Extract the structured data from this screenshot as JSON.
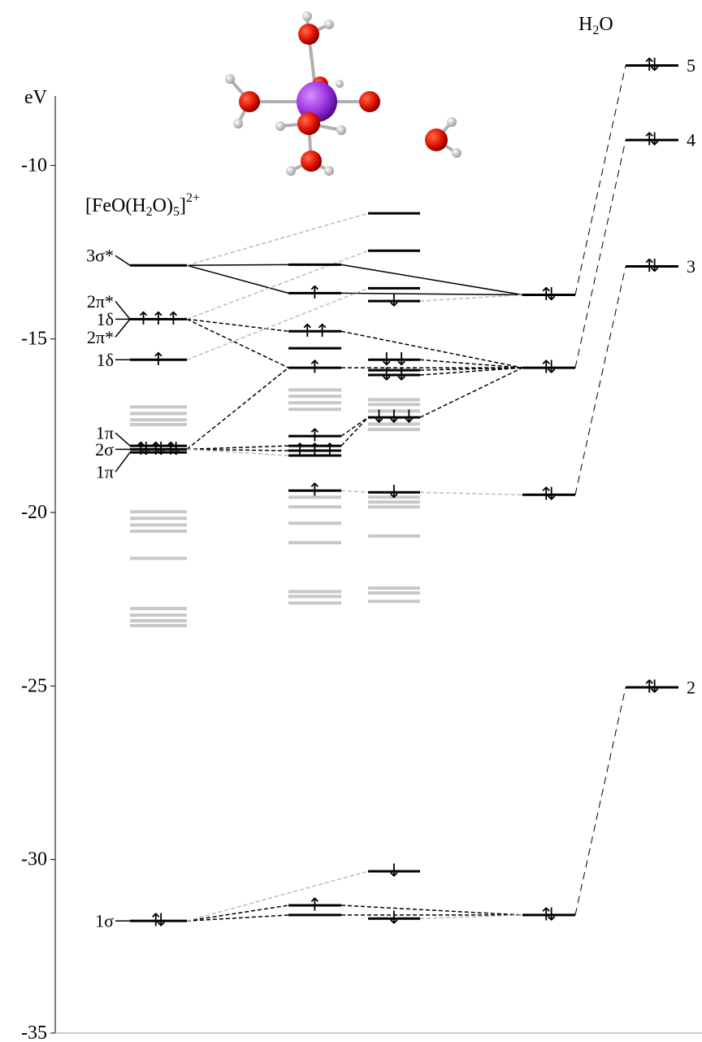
{
  "chart_data": {
    "type": "energy-levels",
    "y_label": "eV",
    "ylim": [
      -35,
      -8
    ],
    "yticks": [
      -35,
      -30,
      -25,
      -20,
      -15,
      -10
    ],
    "complex_label": [
      "[FeO(H",
      "2",
      "O)",
      "5",
      "]",
      "2+"
    ],
    "water_label": [
      "H",
      "2",
      "O"
    ],
    "main_color": "#000000",
    "other_color": "#c8c8c8",
    "columns": [
      {
        "values": [
          -12.88,
          -14.43,
          -15.6,
          -18.08,
          -18.18,
          -18.27,
          -31.77
        ],
        "electrons": [
          null,
          "↑↑↑",
          "↑",
          null,
          "⇅⇅⇅",
          null,
          "⇅"
        ],
        "labels": [
          [
            "3σ*"
          ],
          [
            "2π*",
            "1δ",
            "2π*"
          ],
          [
            "1δ"
          ],
          [
            "1π"
          ],
          [
            "2σ"
          ],
          [
            "1π"
          ],
          [
            "1σ"
          ]
        ],
        "other_values": [
          -16.96,
          -17.15,
          -17.33,
          -17.47,
          -19.98,
          -20.17,
          -20.36,
          -20.54,
          -21.32,
          -22.77,
          -22.96,
          -23.12,
          -23.26
        ]
      },
      {
        "values": [
          -12.86,
          -13.68,
          -14.78,
          -15.27,
          -15.83,
          -17.8,
          -18.08,
          -18.22,
          -18.36,
          -19.37,
          -31.32,
          -31.6
        ],
        "electrons": [
          null,
          "↑",
          "↑↑",
          null,
          "↑",
          "↑",
          null,
          "↑↑↑",
          null,
          "↑",
          "↑",
          null
        ],
        "other_values": [
          -16.47,
          -16.65,
          -16.84,
          -17.03,
          -19.56,
          -19.84,
          -20.31,
          -20.87,
          -22.28,
          -22.42,
          -22.61
        ]
      },
      {
        "values": [
          -11.38,
          -12.46,
          -13.54,
          -13.91,
          -15.6,
          -15.9,
          -16.04,
          -17.26,
          -19.42,
          -30.34,
          -31.7
        ],
        "electrons": [
          null,
          null,
          null,
          "↓",
          "↓↓",
          null,
          "↓↓",
          "↓↓↓",
          "↓",
          "↓",
          "↓"
        ],
        "other_values": [
          -16.75,
          -16.89,
          -17.08,
          -17.45,
          -17.61,
          -19.56,
          -19.7,
          -19.84,
          -20.68,
          -22.18,
          -22.32,
          -22.56
        ]
      },
      {
        "values": [
          -13.73,
          -15.83,
          -19.49,
          -31.6
        ],
        "electrons": [
          "⇅",
          "⇅",
          "⇅",
          "⇅"
        ]
      },
      {
        "values": [
          -7.12,
          -9.27,
          -12.91,
          -25.04
        ],
        "electrons": [
          "⇅",
          "⇅",
          "⇅",
          "⇅"
        ],
        "labels": [
          [
            "5"
          ],
          [
            "4"
          ],
          [
            "3"
          ],
          [
            "2"
          ]
        ]
      }
    ],
    "links": [
      {
        "style": "solid",
        "color": "#000000",
        "pairs": [
          [
            [
              0,
              0
            ],
            [
              1,
              0
            ]
          ],
          [
            [
              0,
              0
            ],
            [
              1,
              1
            ]
          ],
          [
            [
              1,
              0
            ],
            [
              3,
              0
            ]
          ],
          [
            [
              1,
              1
            ],
            [
              3,
              0
            ]
          ]
        ]
      },
      {
        "style": "dashed",
        "color": "#000000",
        "pairs": [
          [
            [
              0,
              1
            ],
            [
              1,
              2
            ]
          ],
          [
            [
              0,
              1
            ],
            [
              1,
              4
            ]
          ],
          [
            [
              1,
              2
            ],
            [
              3,
              1
            ]
          ],
          [
            [
              1,
              4
            ],
            [
              3,
              1
            ]
          ],
          [
            [
              0,
              4
            ],
            [
              1,
              4
            ]
          ],
          [
            [
              0,
              4
            ],
            [
              1,
              6
            ]
          ],
          [
            [
              0,
              4
            ],
            [
              1,
              7
            ]
          ],
          [
            [
              1,
              5
            ],
            [
              2,
              7
            ]
          ],
          [
            [
              1,
              6
            ],
            [
              2,
              7
            ]
          ],
          [
            [
              2,
              4
            ],
            [
              3,
              1
            ]
          ],
          [
            [
              2,
              5
            ],
            [
              3,
              1
            ]
          ],
          [
            [
              2,
              6
            ],
            [
              3,
              1
            ]
          ],
          [
            [
              2,
              7
            ],
            [
              3,
              1
            ]
          ],
          [
            [
              0,
              6
            ],
            [
              1,
              10
            ]
          ],
          [
            [
              0,
              6
            ],
            [
              1,
              11
            ]
          ],
          [
            [
              1,
              10
            ],
            [
              3,
              3
            ]
          ],
          [
            [
              1,
              11
            ],
            [
              3,
              3
            ]
          ]
        ]
      },
      {
        "style": "dashed",
        "color": "#bbbbbb",
        "pairs": [
          [
            [
              0,
              0
            ],
            [
              2,
              0
            ]
          ],
          [
            [
              0,
              1
            ],
            [
              2,
              1
            ]
          ],
          [
            [
              0,
              2
            ],
            [
              2,
              2
            ]
          ],
          [
            [
              2,
              3
            ],
            [
              3,
              0
            ]
          ],
          [
            [
              1,
              9
            ],
            [
              2,
              8
            ]
          ],
          [
            [
              2,
              8
            ],
            [
              3,
              2
            ]
          ],
          [
            [
              0,
              6
            ],
            [
              2,
              9
            ]
          ],
          [
            [
              2,
              10
            ],
            [
              3,
              3
            ]
          ],
          [
            [
              0,
              4
            ],
            [
              1,
              8
            ]
          ]
        ]
      },
      {
        "style": "long-dashed",
        "color": "#000000",
        "pairs": [
          [
            [
              3,
              0
            ],
            [
              4,
              0
            ]
          ],
          [
            [
              3,
              1
            ],
            [
              4,
              1
            ]
          ],
          [
            [
              3,
              2
            ],
            [
              4,
              2
            ]
          ],
          [
            [
              3,
              3
            ],
            [
              4,
              3
            ]
          ]
        ]
      }
    ]
  }
}
